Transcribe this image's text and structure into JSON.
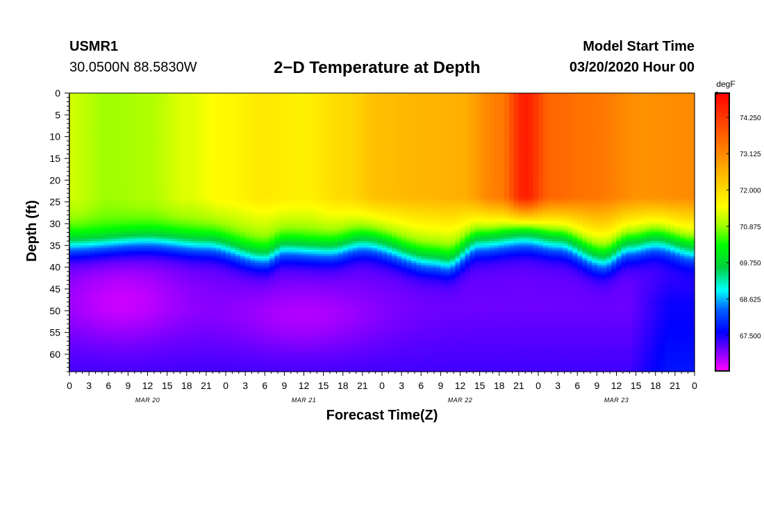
{
  "header": {
    "station_id": "USMR1",
    "coordinates": "30.0500N 88.5830W",
    "title": "2−D Temperature at Depth",
    "model_start_label": "Model Start Time",
    "model_start_value": "03/20/2020 Hour 00"
  },
  "chart_data": {
    "type": "heatmap",
    "title": "2−D Temperature at Depth",
    "xlabel": "Forecast Time(Z)",
    "ylabel": "Depth (ft)",
    "x_hours_range": [
      0,
      96
    ],
    "x_tick_step_hours": 3,
    "x_tick_labels": [
      "0",
      "3",
      "6",
      "9",
      "12",
      "15",
      "18",
      "21",
      "0",
      "3",
      "6",
      "9",
      "12",
      "15",
      "18",
      "21",
      "0",
      "3",
      "6",
      "9",
      "12",
      "15",
      "18",
      "21",
      "0",
      "3",
      "6",
      "9",
      "12",
      "15",
      "18",
      "21",
      "0"
    ],
    "date_labels": [
      {
        "label": "MAR 20",
        "hour": 12
      },
      {
        "label": "MAR 21",
        "hour": 36
      },
      {
        "label": "MAR 22",
        "hour": 60
      },
      {
        "label": "MAR 23",
        "hour": 84
      }
    ],
    "y_range_ft": [
      0,
      64
    ],
    "y_tick_values": [
      0,
      5,
      10,
      15,
      20,
      25,
      30,
      35,
      40,
      45,
      50,
      55,
      60
    ],
    "colorbar": {
      "unit": "degF",
      "range": [
        66.4,
        75.0
      ],
      "tick_values": [
        74.25,
        73.125,
        72.0,
        70.875,
        69.75,
        68.625,
        67.5
      ],
      "tick_labels": [
        "74.250",
        "73.125",
        "72.000",
        "70.875",
        "69.750",
        "68.625",
        "67.500"
      ]
    },
    "colormap": [
      {
        "v": 66.4,
        "color": "#ff00ff"
      },
      {
        "v": 67.0,
        "color": "#8000ff"
      },
      {
        "v": 67.6,
        "color": "#0000ff"
      },
      {
        "v": 68.3,
        "color": "#0060ff"
      },
      {
        "v": 68.9,
        "color": "#00ffff"
      },
      {
        "v": 69.6,
        "color": "#00d040"
      },
      {
        "v": 70.3,
        "color": "#00ff00"
      },
      {
        "v": 70.9,
        "color": "#a0ff00"
      },
      {
        "v": 71.5,
        "color": "#ffff00"
      },
      {
        "v": 72.2,
        "color": "#ffcc00"
      },
      {
        "v": 72.9,
        "color": "#ff9900"
      },
      {
        "v": 73.6,
        "color": "#ff6600"
      },
      {
        "v": 74.3,
        "color": "#ff3300"
      },
      {
        "v": 75.0,
        "color": "#ff0000"
      }
    ],
    "thermocline_depth_ft": [
      {
        "hour": 0,
        "depth": 33
      },
      {
        "hour": 12,
        "depth": 32
      },
      {
        "hour": 21,
        "depth": 33
      },
      {
        "hour": 30,
        "depth": 36
      },
      {
        "hour": 33,
        "depth": 34
      },
      {
        "hour": 40,
        "depth": 34.5
      },
      {
        "hour": 45,
        "depth": 33
      },
      {
        "hour": 56,
        "depth": 37
      },
      {
        "hour": 58,
        "depth": 37.5
      },
      {
        "hour": 63,
        "depth": 33
      },
      {
        "hour": 70,
        "depth": 32
      },
      {
        "hour": 75,
        "depth": 33
      },
      {
        "hour": 82,
        "depth": 37
      },
      {
        "hour": 86,
        "depth": 34
      },
      {
        "hour": 90,
        "depth": 33
      },
      {
        "hour": 96,
        "depth": 35
      }
    ],
    "surface_temperature_degF": [
      {
        "hour": 0,
        "t": 71.2
      },
      {
        "hour": 6,
        "t": 70.9
      },
      {
        "hour": 12,
        "t": 71.0
      },
      {
        "hour": 18,
        "t": 71.3
      },
      {
        "hour": 24,
        "t": 71.6
      },
      {
        "hour": 30,
        "t": 71.8
      },
      {
        "hour": 36,
        "t": 71.7
      },
      {
        "hour": 42,
        "t": 72.0
      },
      {
        "hour": 48,
        "t": 72.4
      },
      {
        "hour": 54,
        "t": 72.5
      },
      {
        "hour": 60,
        "t": 72.6
      },
      {
        "hour": 66,
        "t": 73.3
      },
      {
        "hour": 70,
        "t": 74.6
      },
      {
        "hour": 74,
        "t": 73.6
      },
      {
        "hour": 80,
        "t": 73.4
      },
      {
        "hour": 88,
        "t": 73.0
      },
      {
        "hour": 96,
        "t": 73.1
      }
    ]
  }
}
